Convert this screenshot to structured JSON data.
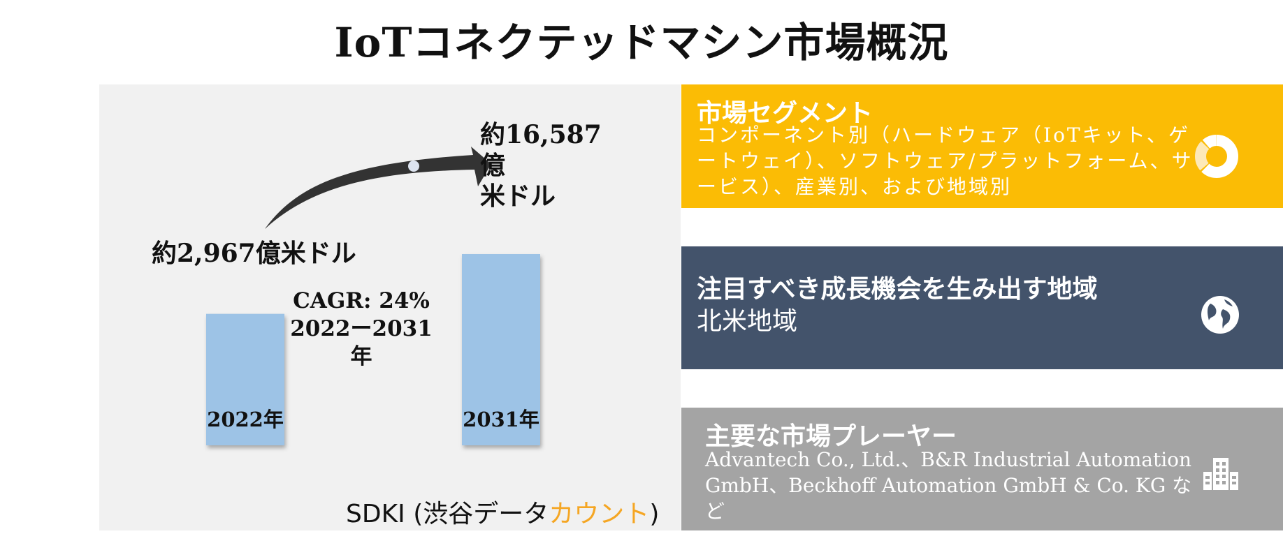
{
  "title": "IoTコネクテッドマシン市場概況",
  "chart_data": {
    "type": "bar",
    "categories": [
      "2022年",
      "2031年"
    ],
    "values": [
      2967,
      16587
    ],
    "value_labels": [
      "約2,967億米ドル",
      "約16,587億米ドル"
    ],
    "value_label_2031_lines": [
      "約16,587億",
      "米ドル"
    ],
    "unit": "億米ドル",
    "cagr_label": "CAGR: 24%",
    "cagr_period": "2022ー2031年",
    "source_prefix": "SDKI (渋谷データ",
    "source_accent": "カウント",
    "source_suffix": ")",
    "colors": {
      "bar": "#9dc3e6",
      "arrow": "#333333",
      "accent": "#f5a623"
    }
  },
  "panels": {
    "segments": {
      "title": "市場セグメント",
      "body": "コンポーネント別（ハードウェア（IoTキット、ゲートウェイ）、ソフトウェア/プラットフォーム、サービス）、産業別、および地域別",
      "icon": "donut-chart-icon",
      "color": "#fbbc05"
    },
    "regions": {
      "title": "注目すべき成長機会を生み出す地域",
      "body": "北米地域",
      "icon": "globe-icon",
      "color": "#43536b"
    },
    "players": {
      "title": "主要な市場プレーヤー",
      "body": "Advantech Co., Ltd.、B&R Industrial Automation GmbH、Beckhoff Automation GmbH & Co. KG など",
      "icon": "building-icon",
      "color": "#a4a4a4"
    }
  }
}
